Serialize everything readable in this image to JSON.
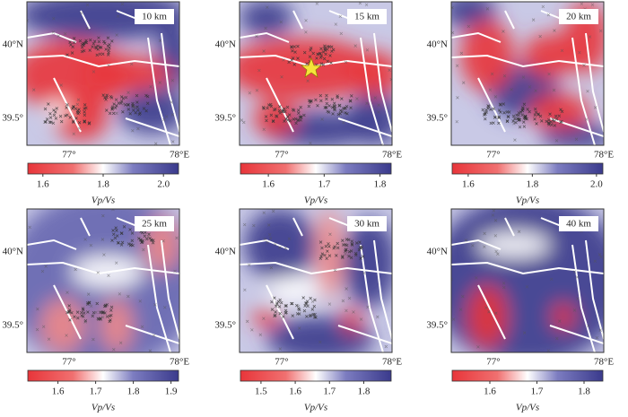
{
  "map_axes": {
    "lat": [
      "40°N",
      "39.5°"
    ],
    "lon": [
      "77°",
      "78°E"
    ]
  },
  "colorbar_label": "Vp/Vs",
  "panels": [
    {
      "depth": "10 km",
      "colorbar": {
        "lim": [
          1.55,
          2.05
        ],
        "ticks": [
          1.6,
          1.8,
          {
            "value": 2,
            "label": "2.0"
          }
        ]
      }
    },
    {
      "depth": "15 km",
      "colorbar": {
        "lim": [
          1.55,
          1.82
        ],
        "ticks": [
          1.6,
          1.7,
          1.8
        ]
      }
    },
    {
      "depth": "20 km",
      "colorbar": {
        "lim": [
          1.55,
          2.02
        ],
        "ticks": [
          1.6,
          1.8,
          {
            "value": 2,
            "label": "2.0"
          }
        ]
      }
    },
    {
      "depth": "25 km",
      "colorbar": {
        "lim": [
          1.52,
          1.92
        ],
        "ticks": [
          1.6,
          1.7,
          1.8,
          1.9
        ]
      }
    },
    {
      "depth": "30 km",
      "colorbar": {
        "lim": [
          1.44,
          1.88
        ],
        "ticks": [
          1.5,
          1.6,
          1.7,
          1.8
        ]
      }
    },
    {
      "depth": "40 km",
      "colorbar": {
        "lim": [
          1.52,
          1.84
        ],
        "ticks": [
          1.6,
          1.7,
          1.8
        ]
      }
    }
  ]
}
